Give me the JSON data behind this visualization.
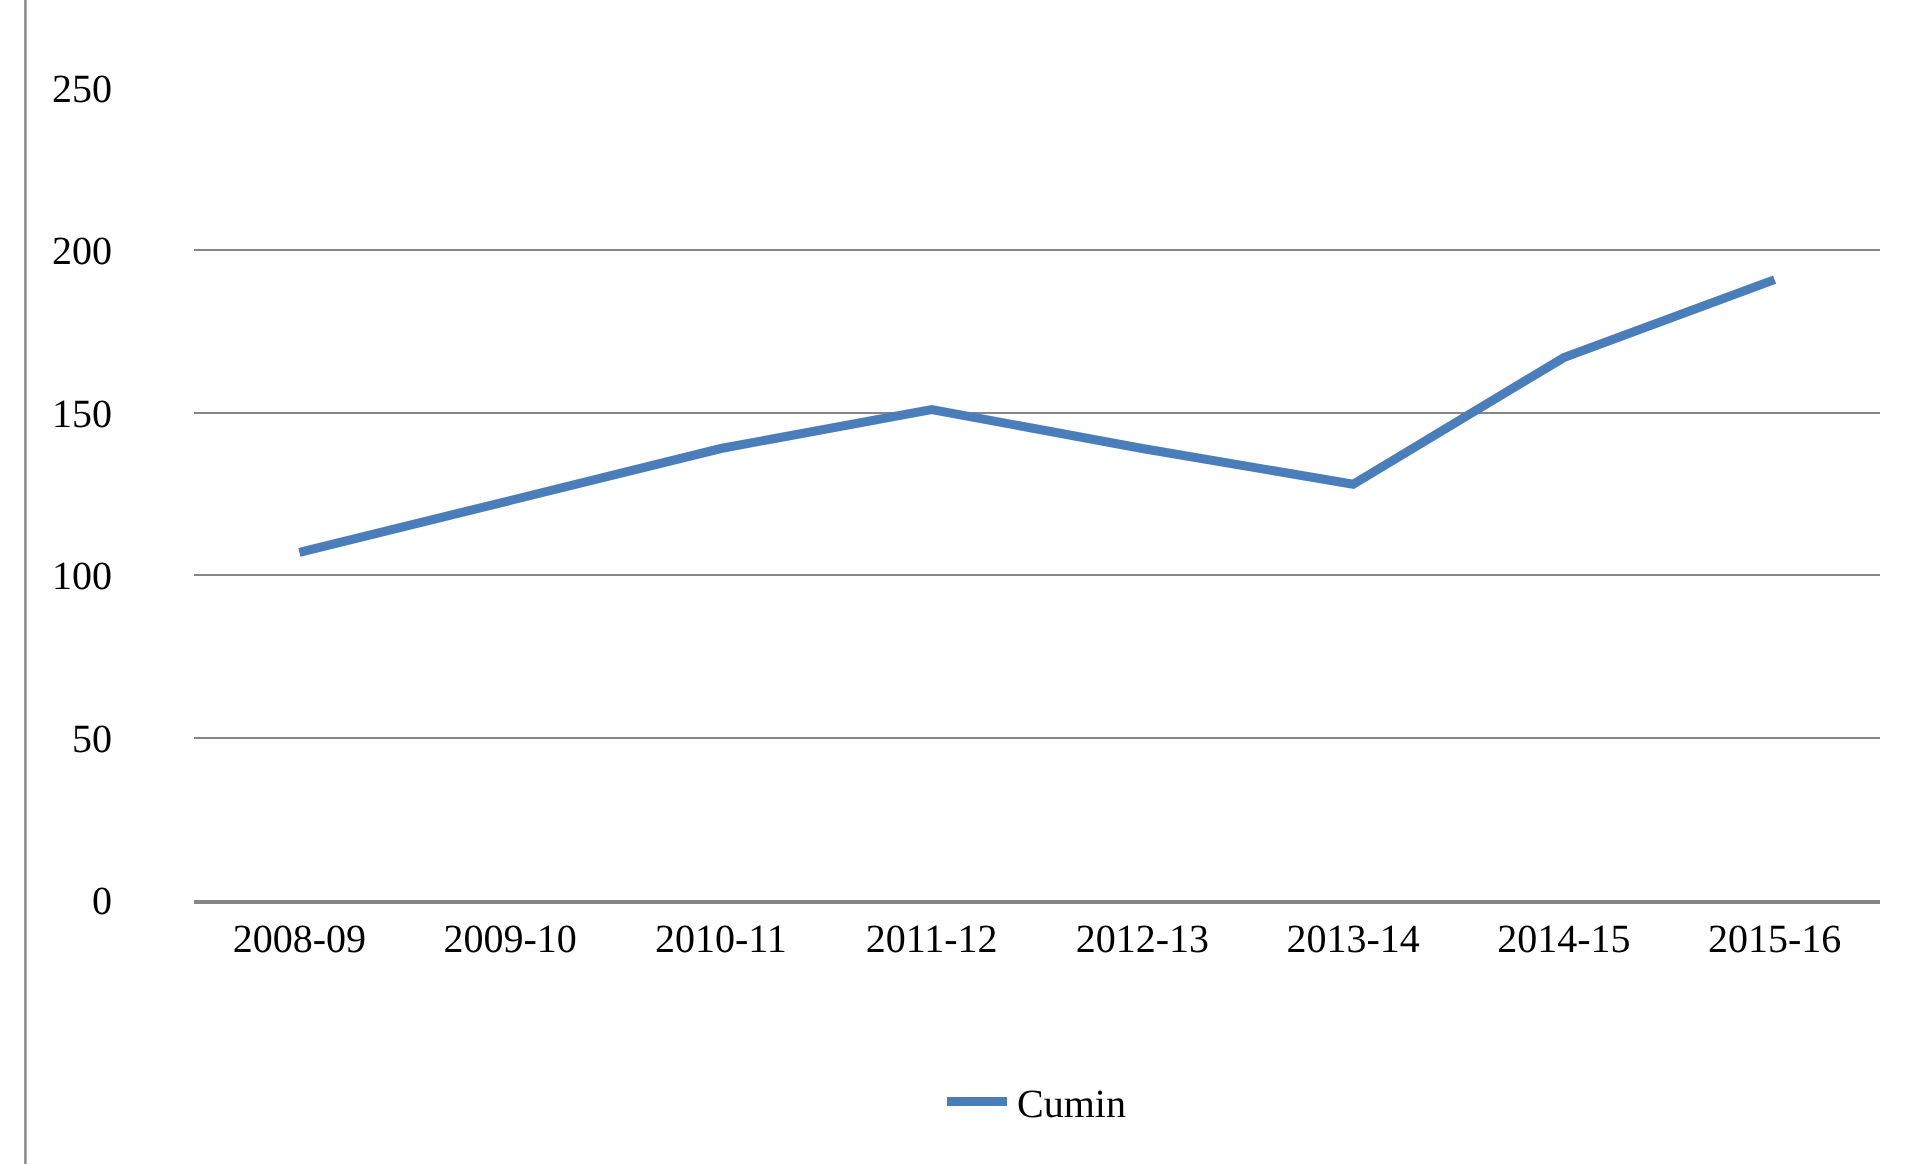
{
  "chart_data": {
    "type": "line",
    "categories": [
      "2008-09",
      "2009-10",
      "2010-11",
      "2011-12",
      "2012-13",
      "2013-14",
      "2014-15",
      "2015-16"
    ],
    "series": [
      {
        "name": "Cumin",
        "color": "#4a7ebb",
        "values": [
          107,
          123,
          139,
          151,
          139,
          128,
          167,
          191
        ]
      }
    ],
    "ylim": [
      0,
      250
    ],
    "yticks": [
      0,
      50,
      100,
      150,
      200,
      250
    ],
    "grid": "y",
    "legend": "bottom",
    "marker": "none",
    "line_style": "solid"
  }
}
